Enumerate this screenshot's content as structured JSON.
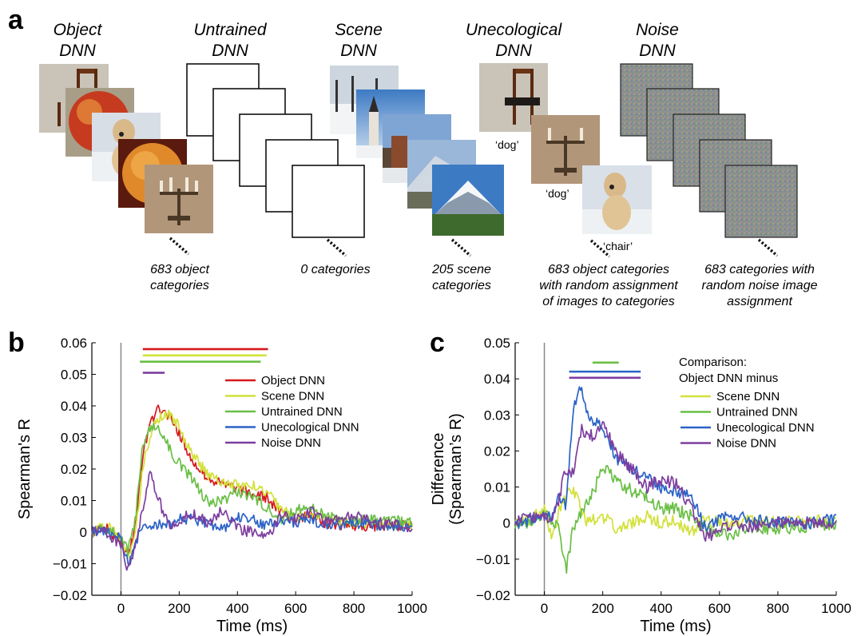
{
  "panels": {
    "a": {
      "label": "a",
      "columns": [
        {
          "title_line1": "Object",
          "title_line2": "DNN",
          "caption": [
            "683 object",
            "categories"
          ],
          "style": "photos"
        },
        {
          "title_line1": "Untrained",
          "title_line2": "DNN",
          "caption": [
            "0 categories"
          ],
          "style": "blank"
        },
        {
          "title_line1": "Scene",
          "title_line2": "DNN",
          "caption": [
            "205 scene",
            "categories"
          ],
          "style": "scenes"
        },
        {
          "title_line1": "Unecological",
          "title_line2": "DNN",
          "caption": [
            "683 object categories",
            "with random assignment",
            "of images to categories"
          ],
          "style": "photos",
          "image_labels": [
            "‘dog’",
            "‘dog’",
            "‘chair’"
          ]
        },
        {
          "title_line1": "Noise",
          "title_line2": "DNN",
          "caption": [
            "683 categories with",
            "random noise image",
            "assignment"
          ],
          "style": "noise"
        }
      ]
    },
    "b": {
      "label": "b"
    },
    "c": {
      "label": "c"
    }
  },
  "colors": {
    "object": "#d7191c",
    "scene": "#d2e13a",
    "untrained": "#6abf45",
    "unecological": "#2b63c6",
    "noise": "#7d3ea0",
    "axis": "#000000",
    "onset": "#888888"
  },
  "chart_data": [
    {
      "type": "line",
      "panel": "b",
      "xlabel": "Time (ms)",
      "ylabel": "Spearman's R",
      "xlim": [
        -100,
        1000
      ],
      "ylim": [
        -0.02,
        0.06
      ],
      "xticks": [
        0,
        200,
        400,
        600,
        800,
        1000
      ],
      "yticks": [
        -0.02,
        -0.01,
        0,
        0.01,
        0.02,
        0.03,
        0.04,
        0.05,
        0.06
      ],
      "ytick_labels": [
        "−0.02",
        "−0.01",
        "0",
        "0.01",
        "0.02",
        "0.03",
        "0.04",
        "0.05",
        "0.06"
      ],
      "legend_position": "top-right",
      "series": [
        {
          "name": "Object DNN",
          "color": "#d7191c",
          "x": [
            -100,
            -50,
            0,
            25,
            50,
            75,
            100,
            125,
            150,
            175,
            200,
            250,
            300,
            350,
            400,
            450,
            500,
            550,
            600,
            650,
            700,
            800,
            900,
            1000
          ],
          "values": [
            0.0,
            0.001,
            -0.003,
            -0.008,
            0.002,
            0.025,
            0.034,
            0.039,
            0.038,
            0.036,
            0.031,
            0.022,
            0.017,
            0.015,
            0.014,
            0.012,
            0.011,
            0.006,
            0.004,
            0.006,
            0.003,
            0.002,
            0.002,
            0.002
          ]
        },
        {
          "name": "Scene DNN",
          "color": "#d2e13a",
          "x": [
            -100,
            -50,
            0,
            25,
            50,
            75,
            100,
            125,
            150,
            175,
            200,
            250,
            300,
            350,
            400,
            450,
            500,
            550,
            600,
            650,
            700,
            800,
            900,
            1000
          ],
          "values": [
            0.0,
            0.002,
            -0.002,
            -0.007,
            0.0,
            0.02,
            0.031,
            0.036,
            0.037,
            0.037,
            0.033,
            0.024,
            0.018,
            0.016,
            0.015,
            0.015,
            0.013,
            0.007,
            0.005,
            0.006,
            0.004,
            0.003,
            0.003,
            0.002
          ]
        },
        {
          "name": "Untrained DNN",
          "color": "#6abf45",
          "x": [
            -100,
            -50,
            0,
            25,
            50,
            75,
            100,
            125,
            150,
            175,
            200,
            250,
            300,
            350,
            400,
            450,
            500,
            550,
            600,
            650,
            700,
            800,
            900,
            1000
          ],
          "values": [
            0.0,
            0.001,
            -0.002,
            -0.006,
            0.004,
            0.028,
            0.033,
            0.034,
            0.03,
            0.025,
            0.022,
            0.016,
            0.009,
            0.01,
            0.013,
            0.011,
            0.008,
            0.004,
            0.007,
            0.008,
            0.005,
            0.004,
            0.004,
            0.003
          ]
        },
        {
          "name": "Unecological DNN",
          "color": "#2b63c6",
          "x": [
            -100,
            -50,
            0,
            25,
            50,
            75,
            100,
            125,
            150,
            175,
            200,
            250,
            300,
            350,
            400,
            450,
            500,
            550,
            600,
            650,
            700,
            800,
            900,
            1000
          ],
          "values": [
            0.0,
            0.0,
            -0.002,
            -0.01,
            -0.004,
            0.003,
            0.001,
            0.002,
            0.003,
            0.002,
            0.004,
            0.004,
            0.003,
            0.001,
            0.005,
            0.004,
            0.002,
            0.004,
            0.003,
            0.004,
            0.002,
            0.003,
            0.002,
            0.002
          ]
        },
        {
          "name": "Noise DNN",
          "color": "#7d3ea0",
          "x": [
            -100,
            -50,
            0,
            25,
            50,
            75,
            100,
            125,
            150,
            175,
            200,
            250,
            300,
            350,
            400,
            450,
            500,
            550,
            600,
            650,
            700,
            800,
            900,
            1000
          ],
          "values": [
            0.0,
            0.0,
            -0.004,
            -0.012,
            -0.005,
            0.008,
            0.019,
            0.012,
            0.005,
            0.002,
            0.004,
            0.006,
            0.003,
            0.007,
            0.001,
            0.0,
            -0.002,
            0.005,
            0.004,
            0.007,
            0.003,
            0.005,
            0.003,
            0.001
          ]
        }
      ],
      "significance_bars": [
        {
          "series": "Object DNN",
          "color": "#d7191c",
          "x_start": 75,
          "x_end": 505,
          "y": 0.058
        },
        {
          "series": "Scene DNN",
          "color": "#d2e13a",
          "x_start": 75,
          "x_end": 500,
          "y": 0.056
        },
        {
          "series": "Untrained DNN",
          "color": "#6abf45",
          "x_start": 65,
          "x_end": 480,
          "y": 0.054
        },
        {
          "series": "Noise DNN",
          "color": "#7d3ea0",
          "x_start": 75,
          "x_end": 150,
          "y": 0.0505
        }
      ]
    },
    {
      "type": "line",
      "panel": "c",
      "xlabel": "Time (ms)",
      "ylabel": "Difference (Spearman's R)",
      "ylabel_lines": [
        "Difference",
        "(Spearman’s R)"
      ],
      "xlim": [
        -100,
        1000
      ],
      "ylim": [
        -0.02,
        0.05
      ],
      "xticks": [
        0,
        200,
        400,
        600,
        800,
        1000
      ],
      "yticks": [
        -0.02,
        -0.01,
        0,
        0.01,
        0.02,
        0.03,
        0.04,
        0.05
      ],
      "ytick_labels": [
        "−0.02",
        "−0.01",
        "0",
        "0.01",
        "0.02",
        "0.03",
        "0.04",
        "0.05"
      ],
      "legend_title": [
        "Comparison:",
        "Object DNN minus"
      ],
      "legend_position": "top-right",
      "series": [
        {
          "name": "Scene DNN",
          "color": "#d2e13a",
          "x": [
            -100,
            -50,
            0,
            25,
            50,
            75,
            100,
            125,
            150,
            175,
            200,
            250,
            300,
            350,
            400,
            450,
            500,
            550,
            600,
            650,
            700,
            800,
            900,
            1000
          ],
          "values": [
            0.0,
            0.001,
            0.004,
            -0.004,
            0.003,
            0.008,
            0.009,
            0.004,
            0.0,
            0.001,
            0.002,
            -0.002,
            0.0,
            0.002,
            0.0,
            0.001,
            -0.003,
            0.001,
            0.0,
            -0.001,
            0.001,
            0.0,
            0.001,
            0.0
          ]
        },
        {
          "name": "Untrained DNN",
          "color": "#6abf45",
          "x": [
            -100,
            -50,
            0,
            25,
            50,
            75,
            100,
            125,
            150,
            175,
            200,
            250,
            300,
            350,
            400,
            450,
            500,
            550,
            600,
            650,
            700,
            800,
            900,
            1000
          ],
          "values": [
            0.0,
            0.0,
            0.003,
            0.001,
            -0.002,
            -0.013,
            -0.001,
            0.003,
            0.006,
            0.01,
            0.016,
            0.011,
            0.009,
            0.007,
            0.004,
            0.004,
            0.002,
            -0.002,
            -0.003,
            -0.003,
            -0.001,
            -0.002,
            -0.001,
            0.0
          ]
        },
        {
          "name": "Unecological DNN",
          "color": "#2b63c6",
          "x": [
            -100,
            -50,
            0,
            25,
            50,
            75,
            100,
            125,
            150,
            175,
            200,
            250,
            300,
            350,
            400,
            450,
            500,
            550,
            600,
            650,
            700,
            800,
            900,
            1000
          ],
          "values": [
            0.0,
            0.001,
            0.003,
            0.002,
            0.008,
            0.005,
            0.033,
            0.037,
            0.03,
            0.028,
            0.026,
            0.018,
            0.015,
            0.013,
            0.01,
            0.009,
            0.008,
            -0.001,
            0.001,
            0.002,
            0.001,
            0.0,
            0.0,
            0.001
          ]
        },
        {
          "name": "Noise DNN",
          "color": "#7d3ea0",
          "x": [
            -100,
            -50,
            0,
            25,
            50,
            75,
            100,
            125,
            150,
            175,
            200,
            250,
            300,
            350,
            400,
            450,
            500,
            550,
            600,
            650,
            700,
            800,
            900,
            1000
          ],
          "values": [
            0.0,
            0.002,
            0.002,
            0.001,
            0.007,
            0.015,
            0.014,
            0.026,
            0.025,
            0.024,
            0.028,
            0.019,
            0.015,
            0.01,
            0.012,
            0.011,
            0.005,
            -0.004,
            -0.002,
            0.0,
            -0.001,
            0.0,
            0.0,
            0.0
          ]
        }
      ],
      "significance_bars": [
        {
          "series": "Untrained DNN",
          "color": "#6abf45",
          "x_start": 165,
          "x_end": 255,
          "y": 0.0445
        },
        {
          "series": "Unecological DNN",
          "color": "#2b63c6",
          "x_start": 85,
          "x_end": 330,
          "y": 0.042
        },
        {
          "series": "Noise DNN",
          "color": "#7d3ea0",
          "x_start": 85,
          "x_end": 330,
          "y": 0.0403
        }
      ]
    }
  ]
}
